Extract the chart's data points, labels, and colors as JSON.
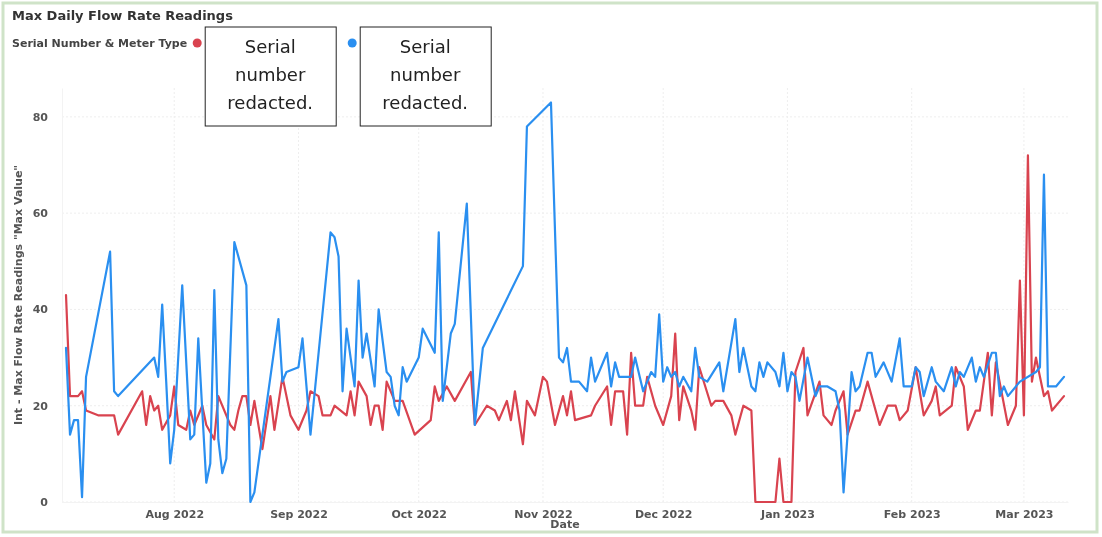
{
  "chart_data": {
    "type": "line",
    "title": "Max Daily Flow Rate Readings",
    "legend_title": "Serial Number & Meter Type",
    "xlabel": "Date",
    "ylabel": "Int - Max Flow Rate Readings \"Max Value\"",
    "legend": "top left",
    "grid": true,
    "line_style": "solid",
    "marker": "none",
    "xlim": [
      "2022-07-04",
      "2023-03-12"
    ],
    "xticks": [
      {
        "value": "2022-08-01",
        "label": "Aug 2022"
      },
      {
        "value": "2022-09-01",
        "label": "Sep 2022"
      },
      {
        "value": "2022-10-01",
        "label": "Oct 2022"
      },
      {
        "value": "2022-11-01",
        "label": "Nov 2022"
      },
      {
        "value": "2022-12-01",
        "label": "Dec 2022"
      },
      {
        "value": "2023-01-01",
        "label": "Jan 2023"
      },
      {
        "value": "2023-02-01",
        "label": "Feb 2023"
      },
      {
        "value": "2023-03-01",
        "label": "Mar 2023"
      }
    ],
    "ylim": [
      0,
      86
    ],
    "yticks": [
      0,
      20,
      40,
      60,
      80
    ],
    "series": [
      {
        "name": "Serial number redacted.",
        "color": "#d9434f",
        "x": [
          "2022-07-05",
          "2022-07-06",
          "2022-07-08",
          "2022-07-09",
          "2022-07-10",
          "2022-07-13",
          "2022-07-17",
          "2022-07-18",
          "2022-07-24",
          "2022-07-25",
          "2022-07-26",
          "2022-07-27",
          "2022-07-28",
          "2022-07-29",
          "2022-07-31",
          "2022-08-01",
          "2022-08-02",
          "2022-08-04",
          "2022-08-05",
          "2022-08-06",
          "2022-08-08",
          "2022-08-09",
          "2022-08-11",
          "2022-08-12",
          "2022-08-15",
          "2022-08-16",
          "2022-08-17",
          "2022-08-18",
          "2022-08-19",
          "2022-08-20",
          "2022-08-21",
          "2022-08-23",
          "2022-08-25",
          "2022-08-26",
          "2022-08-28",
          "2022-08-30",
          "2022-09-01",
          "2022-09-03",
          "2022-09-04",
          "2022-09-06",
          "2022-09-07",
          "2022-09-09",
          "2022-09-10",
          "2022-09-13",
          "2022-09-14",
          "2022-09-15",
          "2022-09-16",
          "2022-09-18",
          "2022-09-19",
          "2022-09-20",
          "2022-09-21",
          "2022-09-22",
          "2022-09-23",
          "2022-09-25",
          "2022-09-26",
          "2022-09-27",
          "2022-09-30",
          "2022-10-04",
          "2022-10-05",
          "2022-10-06",
          "2022-10-08",
          "2022-10-10",
          "2022-10-14",
          "2022-10-15",
          "2022-10-18",
          "2022-10-20",
          "2022-10-21",
          "2022-10-23",
          "2022-10-24",
          "2022-10-25",
          "2022-10-27",
          "2022-10-28",
          "2022-10-30",
          "2022-11-01",
          "2022-11-02",
          "2022-11-04",
          "2022-11-06",
          "2022-11-07",
          "2022-11-08",
          "2022-11-09",
          "2022-11-13",
          "2022-11-14",
          "2022-11-17",
          "2022-11-18",
          "2022-11-19",
          "2022-11-21",
          "2022-11-22",
          "2022-11-23",
          "2022-11-24",
          "2022-11-26",
          "2022-11-27",
          "2022-11-29",
          "2022-12-01",
          "2022-12-03",
          "2022-12-04",
          "2022-12-05",
          "2022-12-06",
          "2022-12-08",
          "2022-12-09",
          "2022-12-10",
          "2022-12-13",
          "2022-12-14",
          "2022-12-16",
          "2022-12-18",
          "2022-12-19",
          "2022-12-21",
          "2022-12-23",
          "2022-12-24",
          "2022-12-29",
          "2022-12-30",
          "2022-12-31",
          "2023-01-02",
          "2023-01-03",
          "2023-01-05",
          "2023-01-06",
          "2023-01-09",
          "2023-01-10",
          "2023-01-12",
          "2023-01-13",
          "2023-01-15",
          "2023-01-16",
          "2023-01-18",
          "2023-01-19",
          "2023-01-21",
          "2023-01-24",
          "2023-01-26",
          "2023-01-28",
          "2023-01-29",
          "2023-01-31",
          "2023-02-02",
          "2023-02-04",
          "2023-02-06",
          "2023-02-07",
          "2023-02-08",
          "2023-02-11",
          "2023-02-12",
          "2023-02-14",
          "2023-02-15",
          "2023-02-17",
          "2023-02-18",
          "2023-02-20",
          "2023-02-21",
          "2023-02-22",
          "2023-02-25",
          "2023-02-27",
          "2023-02-28",
          "2023-03-01",
          "2023-03-02",
          "2023-03-03",
          "2023-03-04",
          "2023-03-06",
          "2023-03-07",
          "2023-03-08",
          "2023-03-11"
        ],
        "values": [
          43,
          22,
          22,
          23,
          19,
          18,
          18,
          14,
          23,
          16,
          22,
          19,
          20,
          15,
          18,
          24,
          16,
          15,
          19,
          16,
          20,
          16,
          13,
          22,
          16,
          15,
          19,
          22,
          22,
          16,
          21,
          11,
          22,
          15,
          26,
          18,
          15,
          19,
          23,
          22,
          18,
          18,
          20,
          18,
          23,
          18,
          25,
          22,
          16,
          20,
          20,
          15,
          25,
          21,
          21,
          21,
          14,
          17,
          24,
          21,
          24,
          21,
          27,
          16,
          20,
          19,
          17,
          21,
          17,
          23,
          12,
          21,
          18,
          26,
          25,
          16,
          22,
          18,
          23,
          17,
          18,
          20,
          24,
          16,
          23,
          23,
          14,
          31,
          20,
          20,
          26,
          20,
          16,
          22,
          35,
          17,
          24,
          19,
          15,
          28,
          20,
          21,
          21,
          18,
          14,
          20,
          19,
          0,
          0,
          9,
          0,
          0,
          27,
          32,
          18,
          25,
          18,
          16,
          19,
          23,
          14,
          19,
          19,
          25,
          16,
          20,
          20,
          17,
          19,
          28,
          18,
          21,
          24,
          18,
          20,
          28,
          24,
          15,
          19,
          19,
          31,
          18,
          29,
          16,
          20,
          46,
          18,
          72,
          25,
          30,
          22,
          23,
          19,
          22
        ]
      },
      {
        "name": "Serial number redacted.",
        "color": "#2a8ff0",
        "x": [
          "2022-07-05",
          "2022-07-06",
          "2022-07-07",
          "2022-07-08",
          "2022-07-09",
          "2022-07-10",
          "2022-07-16",
          "2022-07-17",
          "2022-07-18",
          "2022-07-27",
          "2022-07-28",
          "2022-07-29",
          "2022-07-30",
          "2022-07-31",
          "2022-08-01",
          "2022-08-03",
          "2022-08-05",
          "2022-08-06",
          "2022-08-07",
          "2022-08-09",
          "2022-08-10",
          "2022-08-11",
          "2022-08-12",
          "2022-08-13",
          "2022-08-14",
          "2022-08-16",
          "2022-08-19",
          "2022-08-20",
          "2022-08-21",
          "2022-08-27",
          "2022-08-28",
          "2022-08-29",
          "2022-09-01",
          "2022-09-02",
          "2022-09-04",
          "2022-09-09",
          "2022-09-10",
          "2022-09-11",
          "2022-09-12",
          "2022-09-13",
          "2022-09-15",
          "2022-09-16",
          "2022-09-17",
          "2022-09-18",
          "2022-09-20",
          "2022-09-21",
          "2022-09-23",
          "2022-09-24",
          "2022-09-25",
          "2022-09-26",
          "2022-09-27",
          "2022-09-28",
          "2022-10-01",
          "2022-10-02",
          "2022-10-05",
          "2022-10-06",
          "2022-10-07",
          "2022-10-09",
          "2022-10-10",
          "2022-10-13",
          "2022-10-15",
          "2022-10-17",
          "2022-10-27",
          "2022-10-28",
          "2022-11-03",
          "2022-11-05",
          "2022-11-06",
          "2022-11-07",
          "2022-11-08",
          "2022-11-10",
          "2022-11-12",
          "2022-11-13",
          "2022-11-14",
          "2022-11-17",
          "2022-11-18",
          "2022-11-19",
          "2022-11-20",
          "2022-11-23",
          "2022-11-24",
          "2022-11-26",
          "2022-11-28",
          "2022-11-29",
          "2022-11-30",
          "2022-12-01",
          "2022-12-02",
          "2022-12-03",
          "2022-12-04",
          "2022-12-05",
          "2022-12-06",
          "2022-12-08",
          "2022-12-09",
          "2022-12-10",
          "2022-12-12",
          "2022-12-15",
          "2022-12-16",
          "2022-12-19",
          "2022-12-20",
          "2022-12-21",
          "2022-12-23",
          "2022-12-24",
          "2022-12-25",
          "2022-12-26",
          "2022-12-27",
          "2022-12-29",
          "2022-12-30",
          "2022-12-31",
          "2023-01-01",
          "2023-01-02",
          "2023-01-03",
          "2023-01-04",
          "2023-01-06",
          "2023-01-08",
          "2023-01-09",
          "2023-01-11",
          "2023-01-13",
          "2023-01-14",
          "2023-01-15",
          "2023-01-16",
          "2023-01-17",
          "2023-01-18",
          "2023-01-19",
          "2023-01-21",
          "2023-01-22",
          "2023-01-23",
          "2023-01-25",
          "2023-01-27",
          "2023-01-29",
          "2023-01-30",
          "2023-02-01",
          "2023-02-02",
          "2023-02-03",
          "2023-02-04",
          "2023-02-06",
          "2023-02-07",
          "2023-02-09",
          "2023-02-11",
          "2023-02-12",
          "2023-02-13",
          "2023-02-14",
          "2023-02-16",
          "2023-02-17",
          "2023-02-18",
          "2023-02-19",
          "2023-02-21",
          "2023-02-22",
          "2023-02-23",
          "2023-02-24",
          "2023-02-25",
          "2023-02-28",
          "2023-03-04",
          "2023-03-05",
          "2023-03-06",
          "2023-03-07",
          "2023-03-09",
          "2023-03-11"
        ],
        "values": [
          32,
          14,
          17,
          17,
          1,
          26,
          52,
          23,
          22,
          30,
          26,
          41,
          25,
          8,
          15,
          45,
          13,
          14,
          34,
          4,
          8,
          44,
          13,
          6,
          9,
          54,
          45,
          0,
          2,
          38,
          25,
          27,
          28,
          34,
          14,
          56,
          55,
          51,
          23,
          36,
          24,
          46,
          30,
          35,
          24,
          40,
          27,
          26,
          20,
          18,
          28,
          25,
          30,
          36,
          31,
          56,
          21,
          35,
          37,
          62,
          16,
          32,
          49,
          78,
          83,
          30,
          29,
          32,
          25,
          25,
          23,
          30,
          25,
          31,
          24,
          29,
          26,
          26,
          30,
          23,
          27,
          26,
          39,
          25,
          28,
          26,
          27,
          24,
          26,
          23,
          32,
          26,
          25,
          29,
          23,
          38,
          27,
          32,
          24,
          23,
          29,
          26,
          29,
          27,
          24,
          31,
          23,
          27,
          26,
          21,
          30,
          22,
          24,
          24,
          23,
          19,
          2,
          14,
          27,
          23,
          24,
          31,
          31,
          26,
          29,
          25,
          34,
          24,
          24,
          28,
          27,
          22,
          28,
          25,
          23,
          28,
          24,
          27,
          26,
          30,
          25,
          28,
          26,
          31,
          31,
          22,
          24,
          22,
          25,
          27,
          28,
          68,
          24,
          24,
          26
        ]
      }
    ]
  }
}
